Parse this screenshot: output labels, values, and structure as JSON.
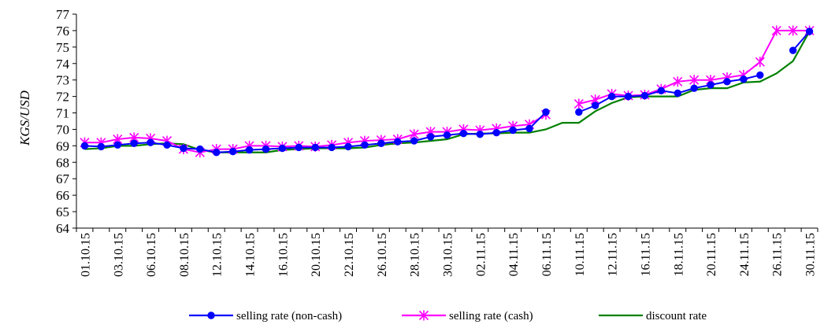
{
  "chart_data": {
    "type": "line",
    "title": "",
    "ylabel": "KGS/USD",
    "xlabel": "",
    "ylim": [
      64,
      77
    ],
    "yticks": [
      64,
      65,
      66,
      67,
      68,
      69,
      70,
      71,
      72,
      73,
      74,
      75,
      76,
      77
    ],
    "x": [
      "01.10.15",
      "02.10.15",
      "03.10.15",
      "05.10.15",
      "06.10.15",
      "07.10.15",
      "08.10.15",
      "09.10.15",
      "12.10.15",
      "13.10.15",
      "14.10.15",
      "15.10.15",
      "16.10.15",
      "19.10.15",
      "20.10.15",
      "21.10.15",
      "22.10.15",
      "23.10.15",
      "26.10.15",
      "27.10.15",
      "28.10.15",
      "29.10.15",
      "30.10.15",
      "31.10.15",
      "02.11.15",
      "03.11.15",
      "04.11.15",
      "05.11.15",
      "06.11.15",
      "09.11.15",
      "10.11.15",
      "11.11.15",
      "12.11.15",
      "13.11.15",
      "16.11.15",
      "17.11.15",
      "18.11.15",
      "19.11.15",
      "20.11.15",
      "23.11.15",
      "24.11.15",
      "25.11.15",
      "26.11.15",
      "27.11.15",
      "30.11.15"
    ],
    "tick_labels": [
      "01.10.15",
      "03.10.15",
      "06.10.15",
      "08.10.15",
      "12.10.15",
      "14.10.15",
      "16.10.15",
      "20.10.15",
      "22.10.15",
      "26.10.15",
      "28.10.15",
      "30.10.15",
      "02.11.15",
      "04.11.15",
      "06.11.15",
      "10.11.15",
      "12.11.15",
      "16.11.15",
      "18.11.15",
      "20.11.15",
      "24.11.15",
      "26.11.15",
      "30.11.15"
    ],
    "series": [
      {
        "name": "selling rate (non-cash)",
        "color": "#0000ff",
        "marker": "circle",
        "values": [
          69.0,
          68.95,
          69.05,
          69.15,
          69.2,
          69.05,
          68.85,
          68.8,
          68.6,
          68.65,
          68.75,
          68.8,
          68.85,
          68.9,
          68.9,
          68.9,
          68.95,
          69.05,
          69.15,
          69.25,
          69.3,
          69.55,
          69.65,
          69.75,
          69.7,
          69.8,
          69.95,
          70.05,
          71.05,
          null,
          71.05,
          71.45,
          72.0,
          72.0,
          72.05,
          72.35,
          72.2,
          72.5,
          72.7,
          72.9,
          73.05,
          73.3,
          null,
          74.8,
          75.95
        ]
      },
      {
        "name": "selling rate (cash)",
        "color": "#ff00ff",
        "marker": "star",
        "values": [
          69.2,
          69.2,
          69.4,
          69.5,
          69.45,
          69.3,
          68.8,
          68.6,
          68.8,
          68.8,
          69.0,
          69.0,
          68.95,
          69.0,
          68.95,
          69.05,
          69.2,
          69.3,
          69.35,
          69.4,
          69.7,
          69.85,
          69.85,
          70.0,
          69.95,
          70.05,
          70.2,
          70.3,
          70.9,
          null,
          71.55,
          71.8,
          72.15,
          72.05,
          72.1,
          72.45,
          72.9,
          73.0,
          73.0,
          73.15,
          73.3,
          74.1,
          76.0,
          76.0,
          76.0
        ]
      },
      {
        "name": "discount rate",
        "color": "#008000",
        "marker": "none",
        "values": [
          68.8,
          68.85,
          69.0,
          69.0,
          69.1,
          69.15,
          69.1,
          68.75,
          68.6,
          68.6,
          68.6,
          68.6,
          68.75,
          68.8,
          68.85,
          68.85,
          68.85,
          68.9,
          69.05,
          69.15,
          69.2,
          69.3,
          69.4,
          69.7,
          69.75,
          69.75,
          69.8,
          69.8,
          70.0,
          70.4,
          70.4,
          71.1,
          71.6,
          71.95,
          72.0,
          72.0,
          72.0,
          72.4,
          72.5,
          72.5,
          72.85,
          72.9,
          73.4,
          74.15,
          75.95
        ]
      }
    ],
    "legend_position": "bottom",
    "grid": false
  }
}
